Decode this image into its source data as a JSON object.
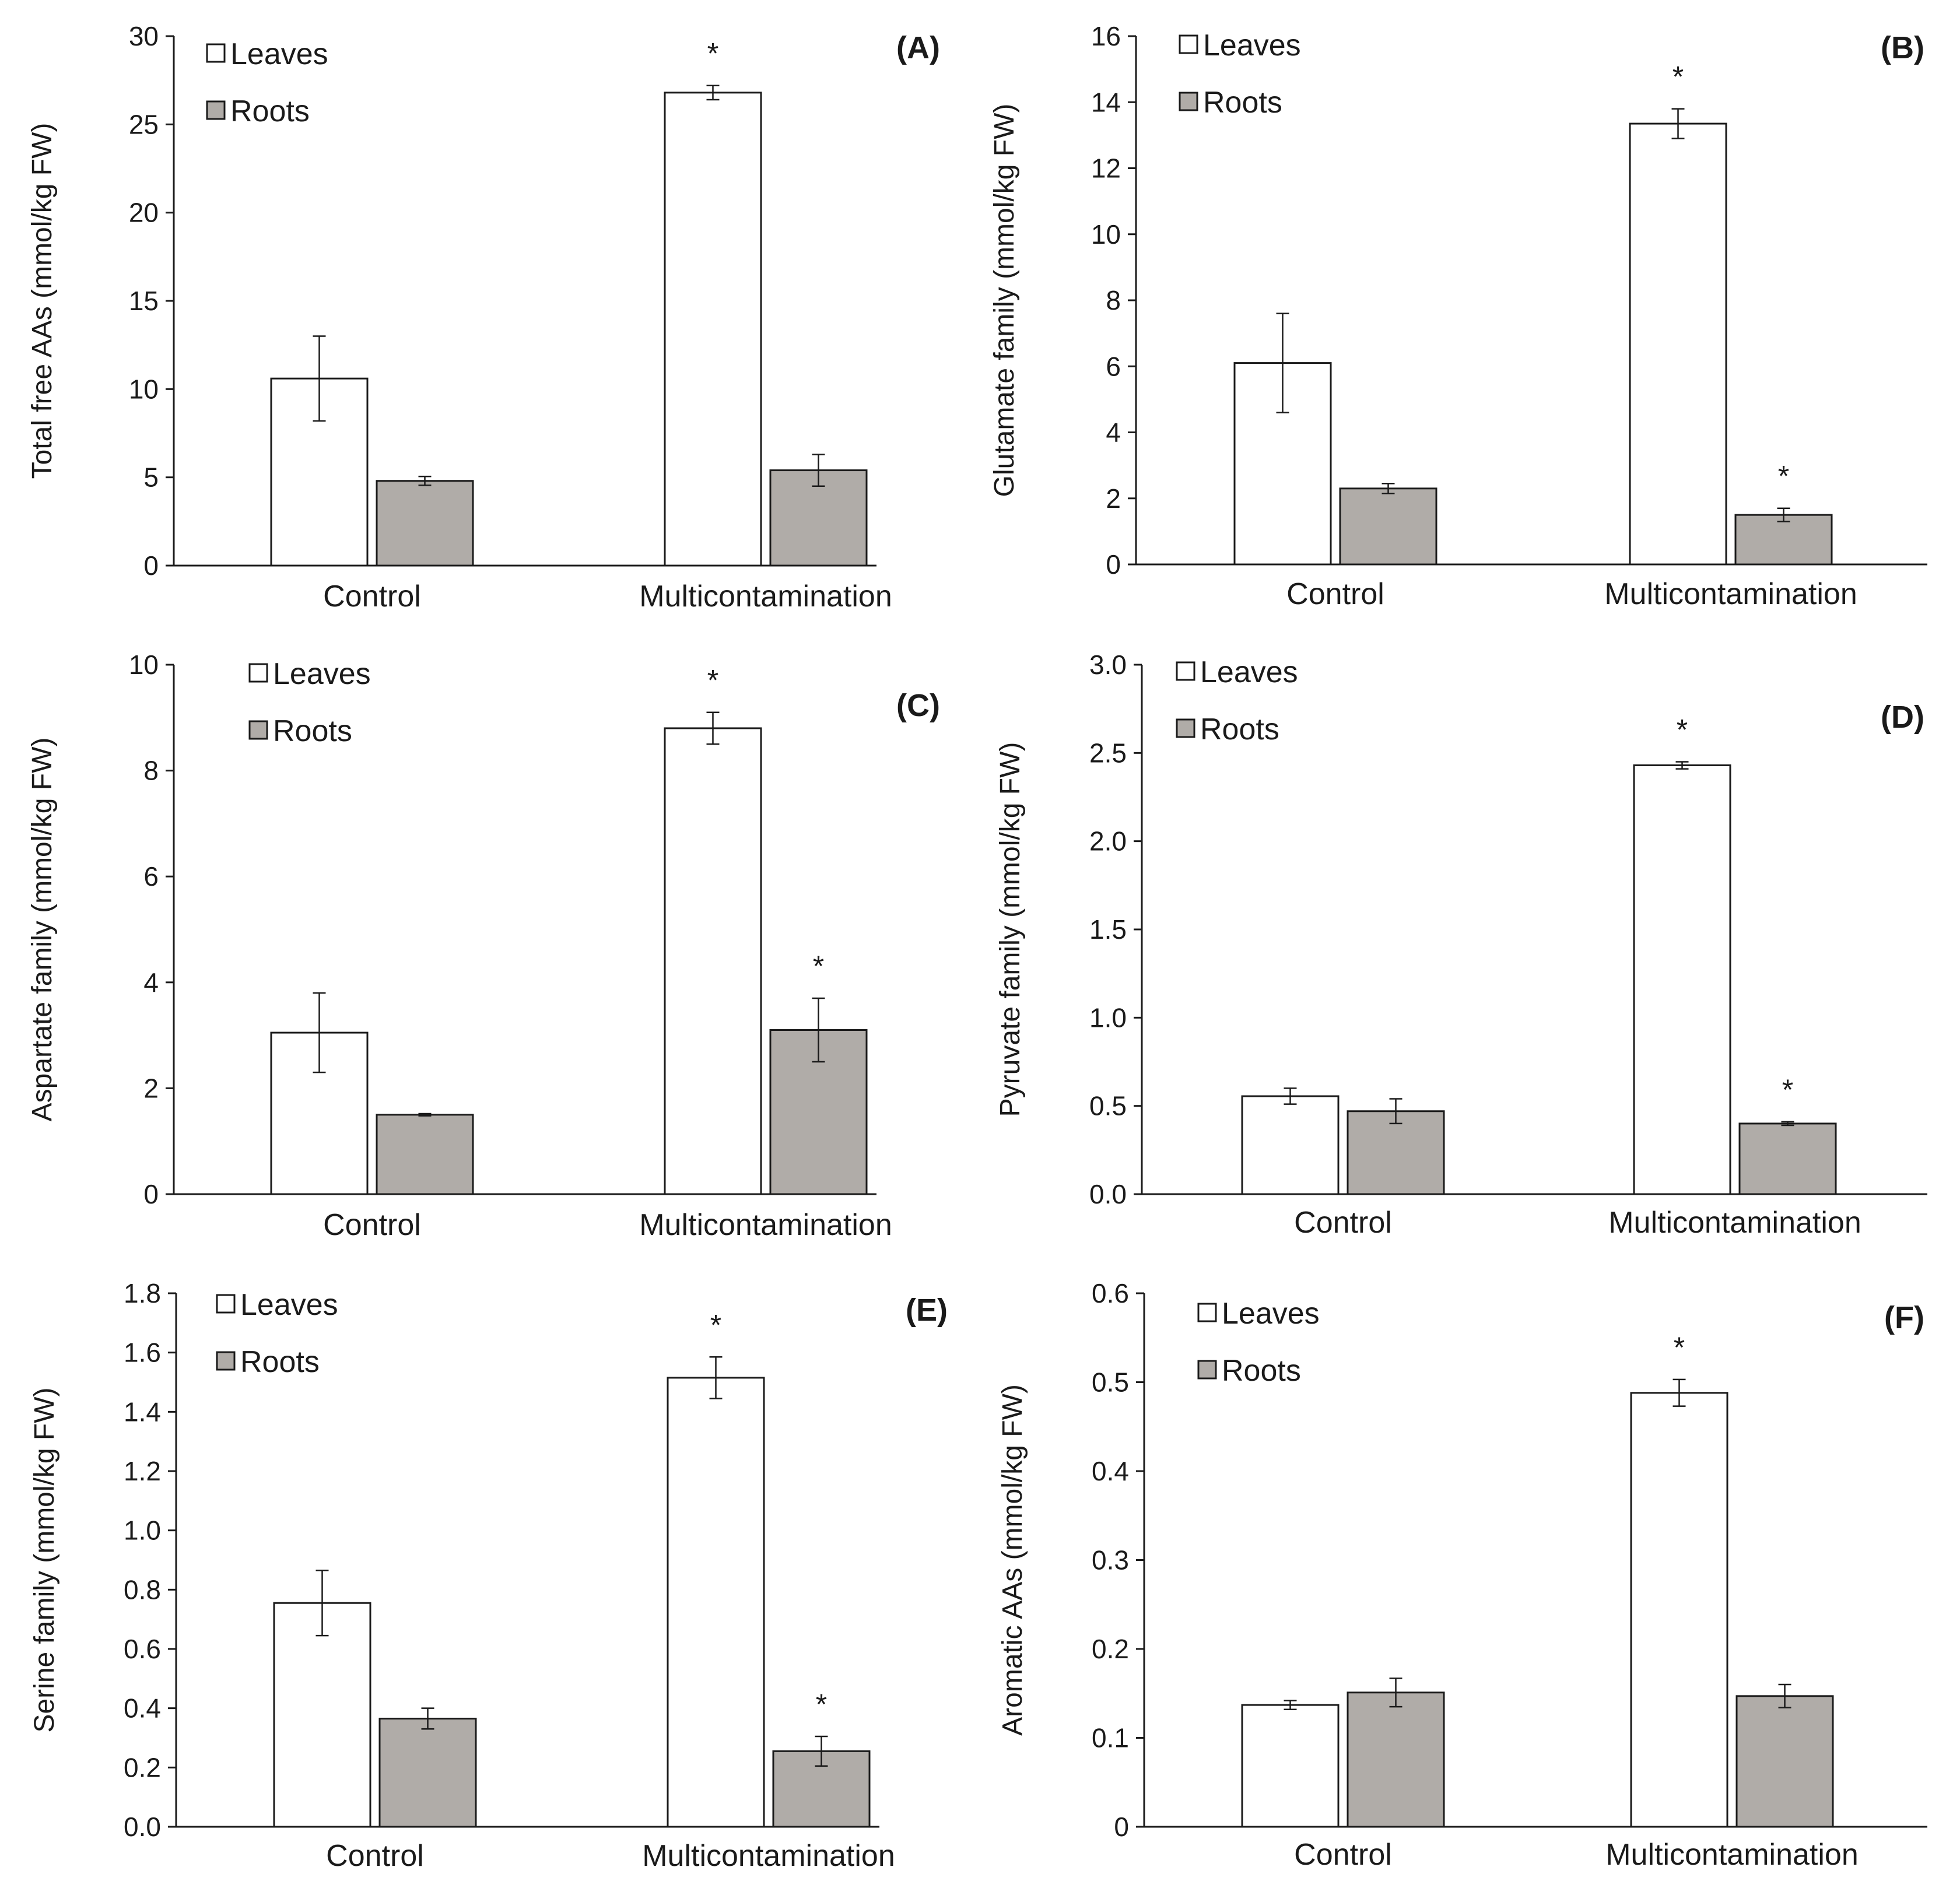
{
  "colors": {
    "leaves": "#ffffff",
    "roots": "#b0aca8",
    "stroke": "#1a1a1a"
  },
  "chart_data": [
    {
      "type": "bar",
      "panel": "(A)",
      "ylabel": "Total free AAs (mmol/kg FW)",
      "categories": [
        "Control",
        "Multicontamination"
      ],
      "ylim": [
        0,
        30
      ],
      "yticks": [
        "0",
        "5",
        "10",
        "15",
        "20",
        "25",
        "30"
      ],
      "legend": [
        "Leaves",
        "Roots"
      ],
      "series": [
        {
          "name": "Leaves",
          "values": [
            10.6,
            26.8
          ],
          "errors": [
            2.4,
            0.4
          ],
          "sig": [
            "",
            "*"
          ]
        },
        {
          "name": "Roots",
          "values": [
            4.8,
            5.4
          ],
          "errors": [
            0.25,
            0.9
          ],
          "sig": [
            "",
            ""
          ]
        }
      ]
    },
    {
      "type": "bar",
      "panel": "(B)",
      "ylabel": "Glutamate family (mmol/kg FW)",
      "categories": [
        "Control",
        "Multicontamination"
      ],
      "ylim": [
        0,
        16
      ],
      "yticks": [
        "0",
        "2",
        "4",
        "6",
        "8",
        "10",
        "12",
        "14",
        "16"
      ],
      "legend": [
        "Leaves",
        "Roots"
      ],
      "series": [
        {
          "name": "Leaves",
          "values": [
            6.1,
            13.35
          ],
          "errors": [
            1.5,
            0.45
          ],
          "sig": [
            "",
            "*"
          ]
        },
        {
          "name": "Roots",
          "values": [
            2.3,
            1.5
          ],
          "errors": [
            0.15,
            0.2
          ],
          "sig": [
            "",
            "*"
          ]
        }
      ]
    },
    {
      "type": "bar",
      "panel": "(C)",
      "ylabel": "Aspartate family (mmol/kg FW)",
      "categories": [
        "Control",
        "Multicontamination"
      ],
      "ylim": [
        0,
        10
      ],
      "yticks": [
        "0",
        "2",
        "4",
        "6",
        "8",
        "10"
      ],
      "legend": [
        "Leaves",
        "Roots"
      ],
      "series": [
        {
          "name": "Leaves",
          "values": [
            3.05,
            8.8
          ],
          "errors": [
            0.75,
            0.3
          ],
          "sig": [
            "",
            "*"
          ]
        },
        {
          "name": "Roots",
          "values": [
            1.5,
            3.1
          ],
          "errors": [
            0.02,
            0.6
          ],
          "sig": [
            "",
            "*"
          ]
        }
      ]
    },
    {
      "type": "bar",
      "panel": "(D)",
      "ylabel": "Pyruvate family (mmol/kg FW)",
      "categories": [
        "Control",
        "Multicontamination"
      ],
      "ylim": [
        0,
        3
      ],
      "yticks": [
        "0.0",
        "0.5",
        "1.0",
        "1.5",
        "2.0",
        "2.5",
        "3.0"
      ],
      "legend": [
        "Leaves",
        "Roots"
      ],
      "series": [
        {
          "name": "Leaves",
          "values": [
            0.555,
            2.43
          ],
          "errors": [
            0.045,
            0.02
          ],
          "sig": [
            "",
            "*"
          ]
        },
        {
          "name": "Roots",
          "values": [
            0.47,
            0.4
          ],
          "errors": [
            0.07,
            0.01
          ],
          "sig": [
            "",
            "*"
          ]
        }
      ]
    },
    {
      "type": "bar",
      "panel": "(E)",
      "ylabel": "Serine family (mmol/kg FW)",
      "categories": [
        "Control",
        "Multicontamination"
      ],
      "ylim": [
        0,
        1.8
      ],
      "yticks": [
        "0.0",
        "0.2",
        "0.4",
        "0.6",
        "0.8",
        "1.0",
        "1.2",
        "1.4",
        "1.6",
        "1.8"
      ],
      "legend": [
        "Leaves",
        "Roots"
      ],
      "series": [
        {
          "name": "Leaves",
          "values": [
            0.755,
            1.515
          ],
          "errors": [
            0.11,
            0.07
          ],
          "sig": [
            "",
            "*"
          ]
        },
        {
          "name": "Roots",
          "values": [
            0.365,
            0.255
          ],
          "errors": [
            0.035,
            0.05
          ],
          "sig": [
            "",
            "*"
          ]
        }
      ]
    },
    {
      "type": "bar",
      "panel": "(F)",
      "ylabel": "Aromatic AAs (mmol/kg FW)",
      "categories": [
        "Control",
        "Multicontamination"
      ],
      "ylim": [
        0,
        0.6
      ],
      "yticks": [
        "0",
        "0.1",
        "0.2",
        "0.3",
        "0.4",
        "0.5",
        "0.6"
      ],
      "legend": [
        "Leaves",
        "Roots"
      ],
      "series": [
        {
          "name": "Leaves",
          "values": [
            0.137,
            0.488
          ],
          "errors": [
            0.005,
            0.015
          ],
          "sig": [
            "",
            "*"
          ]
        },
        {
          "name": "Roots",
          "values": [
            0.151,
            0.147
          ],
          "errors": [
            0.016,
            0.013
          ],
          "sig": [
            "",
            ""
          ]
        }
      ]
    }
  ]
}
